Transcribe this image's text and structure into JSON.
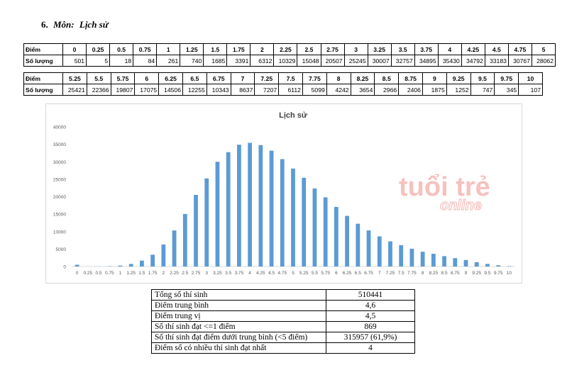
{
  "heading": {
    "number": "6.",
    "label": "Môn:",
    "subject": "Lịch sử"
  },
  "table1": {
    "row_labels": [
      "Điểm",
      "Số lượng"
    ],
    "scores": [
      "0",
      "0.25",
      "0.5",
      "0.75",
      "1",
      "1.25",
      "1.5",
      "1.75",
      "2",
      "2.25",
      "2.5",
      "2.75",
      "3",
      "3.25",
      "3.5",
      "3.75",
      "4",
      "4.25",
      "4.5",
      "4.75",
      "5"
    ],
    "counts": [
      "501",
      "5",
      "18",
      "84",
      "261",
      "740",
      "1685",
      "3391",
      "6312",
      "10329",
      "15048",
      "20507",
      "25245",
      "30007",
      "32757",
      "34895",
      "35430",
      "34792",
      "33183",
      "30767",
      "28062"
    ]
  },
  "table2": {
    "row_labels": [
      "Điểm",
      "Số lượng"
    ],
    "scores": [
      "5.25",
      "5.5",
      "5.75",
      "6",
      "6.25",
      "6.5",
      "6.75",
      "7",
      "7.25",
      "7.5",
      "7.75",
      "8",
      "8.25",
      "8.5",
      "8.75",
      "9",
      "9.25",
      "9.5",
      "9.75",
      "10"
    ],
    "counts": [
      "25421",
      "22366",
      "19807",
      "17075",
      "14506",
      "12255",
      "10343",
      "8637",
      "7207",
      "6112",
      "5099",
      "4242",
      "3654",
      "2966",
      "2406",
      "1875",
      "1252",
      "747",
      "345",
      "107"
    ]
  },
  "watermark": {
    "line1": "tuổi trẻ",
    "line2": "online",
    "color": "#e0241b"
  },
  "chart_data": {
    "type": "bar",
    "title": "Lịch sử",
    "xlabel": "",
    "ylabel": "",
    "ylim": [
      0,
      40000
    ],
    "yticks": [
      0,
      5000,
      10000,
      15000,
      20000,
      25000,
      30000,
      35000,
      40000
    ],
    "grid": false,
    "legend": "none",
    "bar_color": "#5b9bd5",
    "categories": [
      "0",
      "0.25",
      "0.5",
      "0.75",
      "1",
      "1.25",
      "1.5",
      "1.75",
      "2",
      "2.25",
      "2.5",
      "2.75",
      "3",
      "3.25",
      "3.5",
      "3.75",
      "4",
      "4.25",
      "4.5",
      "4.75",
      "5",
      "5.25",
      "5.5",
      "5.75",
      "6",
      "6.25",
      "6.5",
      "6.75",
      "7",
      "7.25",
      "7.5",
      "7.75",
      "8",
      "8.25",
      "8.5",
      "8.75",
      "9",
      "9.25",
      "9.5",
      "9.75",
      "10"
    ],
    "values": [
      501,
      5,
      18,
      84,
      261,
      740,
      1685,
      3391,
      6312,
      10329,
      15048,
      20507,
      25245,
      30007,
      32757,
      34895,
      35430,
      34792,
      33183,
      30767,
      28062,
      25421,
      22366,
      19807,
      17075,
      14506,
      12255,
      10343,
      8637,
      7207,
      6112,
      5099,
      4242,
      3654,
      2966,
      2406,
      1875,
      1252,
      747,
      345,
      107
    ]
  },
  "stats": [
    {
      "label": "Tổng số thí sinh",
      "value": "510441"
    },
    {
      "label": "Điểm trung bình",
      "value": "4,6"
    },
    {
      "label": "Điểm trung vị",
      "value": "4,5"
    },
    {
      "label": "Số thí sinh đạt <=1 điểm",
      "value": "869"
    },
    {
      "label": "Số thí sinh đạt điểm dưới trung bình (<5 điểm)",
      "value": "315957 (61,9%)"
    },
    {
      "label": "Điểm số có nhiều thí sinh đạt nhất",
      "value": "4"
    }
  ]
}
